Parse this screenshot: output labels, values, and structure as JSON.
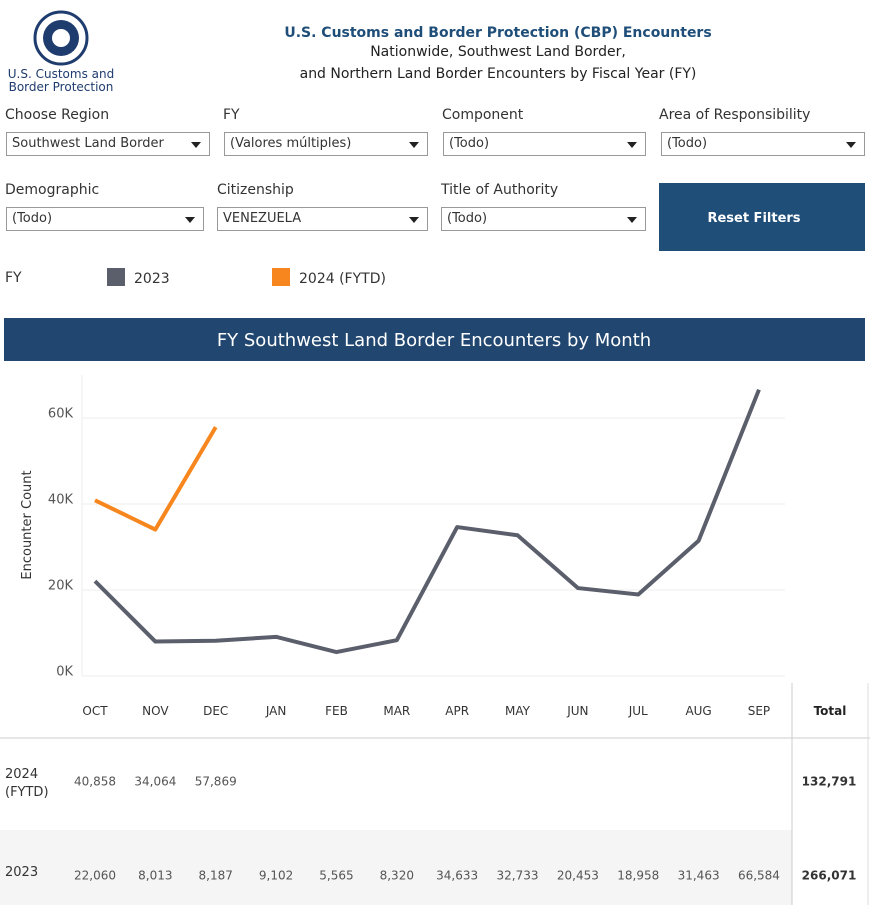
{
  "header": {
    "logo_line1": "U.S. Customs and",
    "logo_line2": "Border Protection",
    "title": "U.S. Customs and Border Protection (CBP) Encounters",
    "subtitle1": "Nationwide, Southwest Land Border,",
    "subtitle2": "and Northern Land Border Encounters by Fiscal Year (FY)"
  },
  "filters": [
    {
      "label": "Choose Region",
      "value": "Southwest Land Border"
    },
    {
      "label": "FY",
      "value": "(Valores múltiples)"
    },
    {
      "label": "Component",
      "value": "(Todo)"
    },
    {
      "label": "Area of Responsibility",
      "value": "(Todo)"
    },
    {
      "label": "Demographic",
      "value": "(Todo)"
    },
    {
      "label": "Citizenship",
      "value": "VENEZUELA"
    },
    {
      "label": "Title of Authority",
      "value": "(Todo)"
    }
  ],
  "reset_button": "Reset Filters",
  "legend_title": "FY",
  "chart_data": {
    "type": "line",
    "title": "FY Southwest Land Border Encounters by Month",
    "y_label": "Encounter Count",
    "categories": [
      "OCT",
      "NOV",
      "DEC",
      "JAN",
      "FEB",
      "MAR",
      "APR",
      "MAY",
      "JUN",
      "JUL",
      "AUG",
      "SEP"
    ],
    "ylim": [
      0,
      70000
    ],
    "yticks": [
      {
        "value": 0,
        "label": "0K"
      },
      {
        "value": 20000,
        "label": "20K"
      },
      {
        "value": 40000,
        "label": "40K"
      },
      {
        "value": 60000,
        "label": "60K"
      }
    ],
    "grid": true,
    "total_header": "Total",
    "series": [
      {
        "name": "2023",
        "color": "#5b5f6b",
        "values": [
          22060,
          8013,
          8187,
          9102,
          5565,
          8320,
          34633,
          32733,
          20453,
          18958,
          31463,
          66584
        ],
        "value_labels": [
          "22,060",
          "8,013",
          "8,187",
          "9,102",
          "5,565",
          "8,320",
          "34,633",
          "32,733",
          "20,453",
          "18,958",
          "31,463",
          "66,584"
        ],
        "total": 266071,
        "total_label": "266,071"
      },
      {
        "name": "2024 (FYTD)",
        "color": "#f7861e",
        "values": [
          40858,
          34064,
          57869,
          null,
          null,
          null,
          null,
          null,
          null,
          null,
          null,
          null
        ],
        "value_labels": [
          "40,858",
          "34,064",
          "57,869",
          null,
          null,
          null,
          null,
          null,
          null,
          null,
          null,
          null
        ],
        "total": 132791,
        "total_label": "132,791"
      }
    ]
  }
}
